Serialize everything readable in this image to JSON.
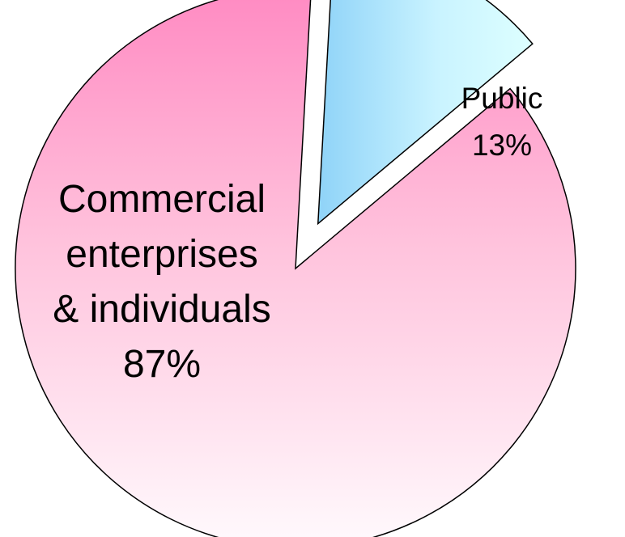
{
  "chart_data": {
    "type": "pie",
    "categories": [
      "Commercial enterprises & individuals",
      "Public"
    ],
    "values": [
      87,
      13
    ],
    "labels": [
      [
        "Commercial",
        "enterprises",
        "& individuals",
        "87%"
      ],
      [
        "Public",
        "13%"
      ]
    ],
    "exploded": [
      false,
      true
    ],
    "colors": [
      "#ff8ac2",
      "#aee6ff"
    ]
  }
}
